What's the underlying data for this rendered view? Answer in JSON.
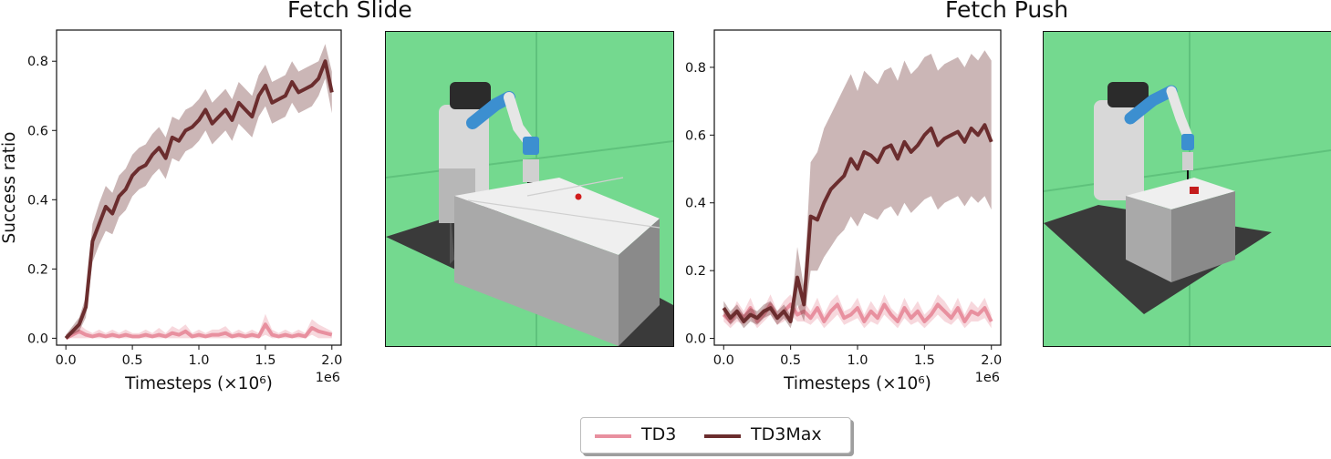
{
  "figure": {
    "titles": [
      "Fetch Slide",
      "Fetch Push"
    ],
    "legend": [
      {
        "label": "TD3",
        "color": "#e8909f"
      },
      {
        "label": "TD3Max",
        "color": "#6b2d2e"
      }
    ]
  },
  "chart_data": [
    {
      "type": "line",
      "title": "Fetch Slide",
      "xlabel": "Timesteps (×10⁶)",
      "ylabel": "Success ratio",
      "x_multiplier": "1e6",
      "xlim": [
        -0.07,
        2.07
      ],
      "ylim": [
        -0.02,
        0.89
      ],
      "xticks": [
        "0.0",
        "0.5",
        "1.0",
        "1.5",
        "2.0"
      ],
      "yticks": [
        "0.0",
        "0.2",
        "0.4",
        "0.6",
        "0.8"
      ],
      "x": [
        0.0,
        0.1,
        0.15,
        0.2,
        0.25,
        0.3,
        0.35,
        0.4,
        0.45,
        0.5,
        0.55,
        0.6,
        0.65,
        0.7,
        0.75,
        0.8,
        0.85,
        0.9,
        0.95,
        1.0,
        1.05,
        1.1,
        1.15,
        1.2,
        1.25,
        1.3,
        1.35,
        1.4,
        1.45,
        1.5,
        1.55,
        1.6,
        1.65,
        1.7,
        1.75,
        1.8,
        1.85,
        1.9,
        1.95,
        2.0
      ],
      "series": [
        {
          "name": "TD3",
          "color": "#e8909f",
          "values": [
            0.0,
            0.02,
            0.01,
            0.005,
            0.01,
            0.005,
            0.01,
            0.005,
            0.01,
            0.005,
            0.005,
            0.01,
            0.005,
            0.01,
            0.005,
            0.015,
            0.01,
            0.02,
            0.005,
            0.01,
            0.005,
            0.01,
            0.01,
            0.015,
            0.005,
            0.01,
            0.005,
            0.01,
            0.005,
            0.04,
            0.01,
            0.005,
            0.01,
            0.005,
            0.01,
            0.005,
            0.03,
            0.02,
            0.015,
            0.01
          ],
          "band_low": [
            0.0,
            0.0,
            0.0,
            0.0,
            0.0,
            0.0,
            0.0,
            0.0,
            0.0,
            0.0,
            0.0,
            0.0,
            0.0,
            0.0,
            0.0,
            0.0,
            0.0,
            0.0,
            0.0,
            0.0,
            0.0,
            0.0,
            0.0,
            0.0,
            0.0,
            0.0,
            0.0,
            0.0,
            0.0,
            0.01,
            0.0,
            0.0,
            0.0,
            0.0,
            0.0,
            0.0,
            0.01,
            0.0,
            0.0,
            0.0
          ],
          "band_high": [
            0.01,
            0.04,
            0.025,
            0.015,
            0.025,
            0.015,
            0.025,
            0.015,
            0.025,
            0.015,
            0.015,
            0.025,
            0.015,
            0.03,
            0.015,
            0.035,
            0.025,
            0.04,
            0.015,
            0.025,
            0.015,
            0.025,
            0.025,
            0.035,
            0.015,
            0.025,
            0.015,
            0.025,
            0.015,
            0.07,
            0.025,
            0.015,
            0.025,
            0.015,
            0.025,
            0.015,
            0.055,
            0.04,
            0.03,
            0.02
          ]
        },
        {
          "name": "TD3Max",
          "color": "#6b2d2e",
          "values": [
            0.0,
            0.04,
            0.09,
            0.28,
            0.33,
            0.38,
            0.36,
            0.41,
            0.43,
            0.47,
            0.49,
            0.5,
            0.53,
            0.55,
            0.52,
            0.58,
            0.57,
            0.6,
            0.61,
            0.63,
            0.66,
            0.62,
            0.64,
            0.66,
            0.63,
            0.68,
            0.66,
            0.64,
            0.7,
            0.73,
            0.68,
            0.69,
            0.7,
            0.74,
            0.71,
            0.72,
            0.73,
            0.75,
            0.8,
            0.71
          ],
          "band_low": [
            0.0,
            0.02,
            0.06,
            0.22,
            0.27,
            0.31,
            0.3,
            0.35,
            0.37,
            0.41,
            0.43,
            0.44,
            0.47,
            0.49,
            0.46,
            0.52,
            0.51,
            0.54,
            0.55,
            0.57,
            0.6,
            0.56,
            0.58,
            0.6,
            0.57,
            0.62,
            0.6,
            0.58,
            0.64,
            0.67,
            0.62,
            0.63,
            0.64,
            0.68,
            0.65,
            0.66,
            0.67,
            0.7,
            0.75,
            0.65
          ],
          "band_high": [
            0.01,
            0.06,
            0.12,
            0.33,
            0.39,
            0.44,
            0.42,
            0.47,
            0.49,
            0.53,
            0.55,
            0.56,
            0.59,
            0.61,
            0.58,
            0.64,
            0.63,
            0.66,
            0.67,
            0.69,
            0.72,
            0.68,
            0.7,
            0.72,
            0.69,
            0.74,
            0.72,
            0.7,
            0.76,
            0.79,
            0.74,
            0.75,
            0.76,
            0.8,
            0.77,
            0.78,
            0.79,
            0.8,
            0.85,
            0.77
          ]
        }
      ]
    },
    {
      "type": "line",
      "title": "Fetch Push",
      "xlabel": "Timesteps (×10⁶)",
      "ylabel": "",
      "x_multiplier": "1e6",
      "xlim": [
        -0.07,
        2.07
      ],
      "ylim": [
        -0.02,
        0.91
      ],
      "xticks": [
        "0.0",
        "0.5",
        "1.0",
        "1.5",
        "2.0"
      ],
      "yticks": [
        "0.0",
        "0.2",
        "0.4",
        "0.6",
        "0.8"
      ],
      "x": [
        0.0,
        0.05,
        0.1,
        0.15,
        0.2,
        0.25,
        0.3,
        0.35,
        0.4,
        0.45,
        0.5,
        0.55,
        0.6,
        0.65,
        0.7,
        0.75,
        0.8,
        0.85,
        0.9,
        0.95,
        1.0,
        1.05,
        1.1,
        1.15,
        1.2,
        1.25,
        1.3,
        1.35,
        1.4,
        1.45,
        1.5,
        1.55,
        1.6,
        1.65,
        1.7,
        1.75,
        1.8,
        1.85,
        1.9,
        1.95,
        2.0
      ],
      "series": [
        {
          "name": "TD3",
          "color": "#e8909f",
          "values": [
            0.07,
            0.05,
            0.08,
            0.06,
            0.09,
            0.05,
            0.07,
            0.1,
            0.06,
            0.08,
            0.1,
            0.07,
            0.08,
            0.06,
            0.09,
            0.05,
            0.08,
            0.1,
            0.06,
            0.07,
            0.09,
            0.05,
            0.08,
            0.06,
            0.1,
            0.07,
            0.05,
            0.09,
            0.06,
            0.08,
            0.05,
            0.07,
            0.1,
            0.08,
            0.06,
            0.09,
            0.05,
            0.08,
            0.07,
            0.09,
            0.05
          ],
          "band_low": [
            0.05,
            0.03,
            0.05,
            0.04,
            0.06,
            0.03,
            0.05,
            0.07,
            0.04,
            0.05,
            0.07,
            0.05,
            0.05,
            0.04,
            0.06,
            0.03,
            0.05,
            0.07,
            0.04,
            0.05,
            0.06,
            0.03,
            0.05,
            0.04,
            0.07,
            0.05,
            0.03,
            0.06,
            0.04,
            0.05,
            0.03,
            0.05,
            0.07,
            0.05,
            0.04,
            0.06,
            0.03,
            0.05,
            0.05,
            0.06,
            0.03
          ],
          "band_high": [
            0.09,
            0.07,
            0.11,
            0.08,
            0.12,
            0.07,
            0.09,
            0.13,
            0.08,
            0.11,
            0.13,
            0.09,
            0.11,
            0.08,
            0.12,
            0.07,
            0.11,
            0.13,
            0.08,
            0.09,
            0.12,
            0.07,
            0.11,
            0.08,
            0.13,
            0.09,
            0.07,
            0.12,
            0.08,
            0.11,
            0.07,
            0.09,
            0.13,
            0.11,
            0.08,
            0.12,
            0.07,
            0.11,
            0.09,
            0.12,
            0.07
          ]
        },
        {
          "name": "TD3Max",
          "color": "#6b2d2e",
          "values": [
            0.09,
            0.06,
            0.08,
            0.05,
            0.07,
            0.06,
            0.08,
            0.09,
            0.06,
            0.08,
            0.05,
            0.18,
            0.1,
            0.36,
            0.35,
            0.4,
            0.44,
            0.46,
            0.48,
            0.53,
            0.5,
            0.55,
            0.54,
            0.52,
            0.56,
            0.57,
            0.53,
            0.58,
            0.55,
            0.57,
            0.6,
            0.62,
            0.57,
            0.59,
            0.6,
            0.61,
            0.58,
            0.62,
            0.6,
            0.63,
            0.58
          ],
          "band_low": [
            0.07,
            0.04,
            0.06,
            0.03,
            0.05,
            0.04,
            0.06,
            0.07,
            0.04,
            0.06,
            0.03,
            0.1,
            0.05,
            0.2,
            0.2,
            0.24,
            0.27,
            0.3,
            0.32,
            0.36,
            0.33,
            0.37,
            0.36,
            0.35,
            0.38,
            0.39,
            0.36,
            0.4,
            0.37,
            0.39,
            0.41,
            0.42,
            0.38,
            0.4,
            0.41,
            0.42,
            0.39,
            0.42,
            0.4,
            0.42,
            0.38
          ],
          "band_high": [
            0.11,
            0.08,
            0.1,
            0.07,
            0.09,
            0.08,
            0.1,
            0.11,
            0.08,
            0.1,
            0.07,
            0.27,
            0.15,
            0.52,
            0.55,
            0.62,
            0.66,
            0.7,
            0.74,
            0.78,
            0.73,
            0.79,
            0.77,
            0.75,
            0.79,
            0.8,
            0.76,
            0.82,
            0.78,
            0.8,
            0.83,
            0.84,
            0.79,
            0.81,
            0.82,
            0.83,
            0.8,
            0.84,
            0.82,
            0.85,
            0.82
          ]
        }
      ]
    }
  ]
}
